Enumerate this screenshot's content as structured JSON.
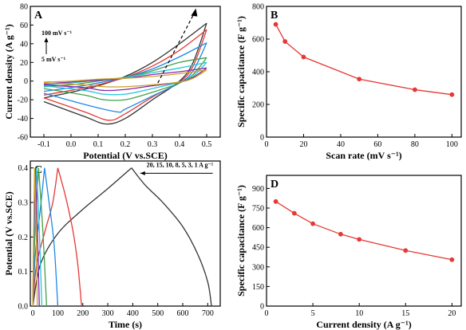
{
  "chart_data": [
    {
      "panel": "A",
      "type": "line",
      "xlabel": "Potential (V vs.SCE)",
      "ylabel": "Current density (A g⁻¹)",
      "xlim": [
        -0.15,
        0.55
      ],
      "ylim": [
        -60,
        80
      ],
      "xticks": [
        "-0.1",
        "0.0",
        "0.1",
        "0.2",
        "0.3",
        "0.4",
        "0.5"
      ],
      "yticks": [
        "-60",
        "-40",
        "-20",
        "0",
        "20",
        "40",
        "60",
        "80"
      ],
      "annotations": {
        "top": "100 mV s⁻¹",
        "bottom": "5 mV s⁻¹"
      },
      "series": [
        {
          "color": "#333333",
          "anodic": [
            [
              -0.1,
              -18
            ],
            [
              0.0,
              -12
            ],
            [
              0.1,
              -5
            ],
            [
              0.2,
              5
            ],
            [
              0.3,
              20
            ],
            [
              0.4,
              40
            ],
            [
              0.5,
              62
            ]
          ],
          "cathodic": [
            [
              0.5,
              62
            ],
            [
              0.45,
              20
            ],
            [
              0.4,
              0
            ],
            [
              0.3,
              -20
            ],
            [
              0.2,
              -40
            ],
            [
              0.13,
              -46
            ],
            [
              0.05,
              -38
            ],
            [
              -0.1,
              -22
            ]
          ]
        },
        {
          "color": "#e53935",
          "anodic": [
            [
              -0.1,
              -15
            ],
            [
              0.0,
              -10
            ],
            [
              0.1,
              -4
            ],
            [
              0.2,
              4
            ],
            [
              0.3,
              16
            ],
            [
              0.4,
              33
            ],
            [
              0.5,
              55
            ]
          ],
          "cathodic": [
            [
              0.5,
              55
            ],
            [
              0.45,
              16
            ],
            [
              0.4,
              -1
            ],
            [
              0.3,
              -17
            ],
            [
              0.2,
              -35
            ],
            [
              0.14,
              -42
            ],
            [
              0.05,
              -33
            ],
            [
              -0.1,
              -18
            ]
          ]
        },
        {
          "color": "#1e88e5",
          "anodic": [
            [
              -0.1,
              -11
            ],
            [
              0.0,
              -7
            ],
            [
              0.1,
              -2
            ],
            [
              0.2,
              4
            ],
            [
              0.3,
              13
            ],
            [
              0.4,
              26
            ],
            [
              0.5,
              41
            ]
          ],
          "cathodic": [
            [
              0.5,
              41
            ],
            [
              0.45,
              11
            ],
            [
              0.4,
              -2
            ],
            [
              0.3,
              -16
            ],
            [
              0.2,
              -30
            ],
            [
              0.17,
              -33
            ],
            [
              0.05,
              -25
            ],
            [
              -0.1,
              -13
            ]
          ]
        },
        {
          "color": "#43a047",
          "anodic": [
            [
              -0.1,
              -6
            ],
            [
              0.0,
              -4
            ],
            [
              0.1,
              0
            ],
            [
              0.2,
              4
            ],
            [
              0.3,
              11
            ],
            [
              0.4,
              20
            ],
            [
              0.5,
              25
            ]
          ],
          "cathodic": [
            [
              0.5,
              25
            ],
            [
              0.45,
              7
            ],
            [
              0.4,
              -2
            ],
            [
              0.3,
              -12
            ],
            [
              0.2,
              -20
            ],
            [
              0.12,
              -20
            ],
            [
              0.05,
              -15
            ],
            [
              -0.1,
              -8
            ]
          ]
        },
        {
          "color": "#26c6da",
          "anodic": [
            [
              -0.1,
              -4
            ],
            [
              0.0,
              -2
            ],
            [
              0.1,
              1
            ],
            [
              0.2,
              4
            ],
            [
              0.3,
              9
            ],
            [
              0.4,
              14
            ],
            [
              0.5,
              20
            ]
          ],
          "cathodic": [
            [
              0.5,
              20
            ],
            [
              0.45,
              5
            ],
            [
              0.4,
              -1
            ],
            [
              0.3,
              -8
            ],
            [
              0.2,
              -14
            ],
            [
              0.12,
              -14
            ],
            [
              0.05,
              -10
            ],
            [
              -0.1,
              -5
            ]
          ]
        },
        {
          "color": "#8e24aa",
          "anodic": [
            [
              -0.1,
              -3
            ],
            [
              0.0,
              -1
            ],
            [
              0.1,
              1
            ],
            [
              0.2,
              3
            ],
            [
              0.3,
              7
            ],
            [
              0.4,
              10
            ],
            [
              0.5,
              14
            ]
          ],
          "cathodic": [
            [
              0.5,
              14
            ],
            [
              0.45,
              4
            ],
            [
              0.4,
              -1
            ],
            [
              0.3,
              -5
            ],
            [
              0.2,
              -9
            ],
            [
              0.12,
              -10
            ],
            [
              0.05,
              -7
            ],
            [
              -0.1,
              -4
            ]
          ]
        },
        {
          "color": "#c9a227",
          "anodic": [
            [
              -0.1,
              -1
            ],
            [
              0.0,
              0
            ],
            [
              0.1,
              2
            ],
            [
              0.2,
              3
            ],
            [
              0.3,
              5
            ],
            [
              0.4,
              8
            ],
            [
              0.5,
              12
            ]
          ],
          "cathodic": [
            [
              0.5,
              12
            ],
            [
              0.45,
              3
            ],
            [
              0.4,
              -1
            ],
            [
              0.3,
              -4
            ],
            [
              0.2,
              -6
            ],
            [
              0.12,
              -6
            ],
            [
              0.05,
              -4
            ],
            [
              -0.1,
              -2
            ]
          ]
        }
      ]
    },
    {
      "panel": "B",
      "type": "line",
      "xlabel": "Scan rate (mV s⁻¹)",
      "ylabel": "Specific capacitance (F g⁻¹)",
      "xlim": [
        0,
        105
      ],
      "ylim": [
        0,
        800
      ],
      "xticks": [
        "0",
        "20",
        "40",
        "60",
        "80",
        "100"
      ],
      "yticks": [
        "0",
        "200",
        "400",
        "600",
        "800"
      ],
      "x": [
        5,
        10,
        20,
        50,
        80,
        100
      ],
      "y": [
        690,
        585,
        490,
        355,
        290,
        260
      ],
      "color": "#e53935"
    },
    {
      "panel": "C",
      "type": "line",
      "xlabel": "Time (s)",
      "ylabel": "Potential (V vs.SCE)",
      "xlim": [
        -10,
        750
      ],
      "ylim": [
        0.0,
        0.42
      ],
      "xticks": [
        "0",
        "100",
        "200",
        "300",
        "400",
        "500",
        "600",
        "700"
      ],
      "yticks": [
        "0.0",
        "0.1",
        "0.2",
        "0.3",
        "0.4"
      ],
      "annotation": "20, 15, 10, 8, 5, 3, 1 A g⁻¹",
      "series": [
        {
          "color": "#333333",
          "charge": [
            [
              0,
              0.0
            ],
            [
              30,
              0.12
            ],
            [
              100,
              0.21
            ],
            [
              200,
              0.28
            ],
            [
              300,
              0.34
            ],
            [
              395,
              0.4
            ]
          ],
          "discharge": [
            [
              395,
              0.4
            ],
            [
              450,
              0.35
            ],
            [
              520,
              0.3
            ],
            [
              600,
              0.23
            ],
            [
              660,
              0.15
            ],
            [
              700,
              0.07
            ],
            [
              715,
              0.0
            ]
          ]
        },
        {
          "color": "#e53935",
          "charge": [
            [
              0,
              0.0
            ],
            [
              15,
              0.12
            ],
            [
              50,
              0.22
            ],
            [
              80,
              0.3
            ],
            [
              100,
              0.4
            ]
          ],
          "discharge": [
            [
              100,
              0.4
            ],
            [
              130,
              0.32
            ],
            [
              160,
              0.22
            ],
            [
              180,
              0.12
            ],
            [
              195,
              0.0
            ]
          ]
        },
        {
          "color": "#1e88e5",
          "charge": [
            [
              0,
              0.0
            ],
            [
              10,
              0.15
            ],
            [
              30,
              0.28
            ],
            [
              47,
              0.4
            ]
          ],
          "discharge": [
            [
              47,
              0.4
            ],
            [
              65,
              0.3
            ],
            [
              85,
              0.18
            ],
            [
              100,
              0.0
            ]
          ]
        },
        {
          "color": "#43a047",
          "charge": [
            [
              0,
              0.0
            ],
            [
              8,
              0.2
            ],
            [
              23,
              0.4
            ]
          ],
          "discharge": [
            [
              23,
              0.4
            ],
            [
              40,
              0.22
            ],
            [
              55,
              0.0
            ]
          ]
        },
        {
          "color": "#26c6da",
          "charge": [
            [
              0,
              0.0
            ],
            [
              5,
              0.2
            ],
            [
              15,
              0.4
            ]
          ],
          "discharge": [
            [
              15,
              0.4
            ],
            [
              27,
              0.2
            ],
            [
              36,
              0.0
            ]
          ]
        },
        {
          "color": "#8e24aa",
          "charge": [
            [
              0,
              0.0
            ],
            [
              4,
              0.2
            ],
            [
              10,
              0.4
            ]
          ],
          "discharge": [
            [
              10,
              0.4
            ],
            [
              19,
              0.2
            ],
            [
              26,
              0.0
            ]
          ]
        },
        {
          "color": "#c9a227",
          "charge": [
            [
              0,
              0.0
            ],
            [
              3,
              0.2
            ],
            [
              7,
              0.4
            ]
          ],
          "discharge": [
            [
              7,
              0.4
            ],
            [
              14,
              0.2
            ],
            [
              18,
              0.0
            ]
          ]
        }
      ]
    },
    {
      "panel": "D",
      "type": "line",
      "xlabel": "Current density (A g⁻¹)",
      "ylabel": "Specific capacitance (F g⁻¹)",
      "xlim": [
        0,
        21
      ],
      "ylim": [
        0,
        1000
      ],
      "xticks": [
        "0",
        "5",
        "10",
        "15",
        "20"
      ],
      "yticks": [
        "0",
        "150",
        "300",
        "450",
        "600",
        "750",
        "900"
      ],
      "x": [
        1,
        3,
        5,
        8,
        10,
        15,
        20
      ],
      "y": [
        800,
        710,
        630,
        550,
        510,
        425,
        355
      ],
      "color": "#e53935"
    }
  ]
}
